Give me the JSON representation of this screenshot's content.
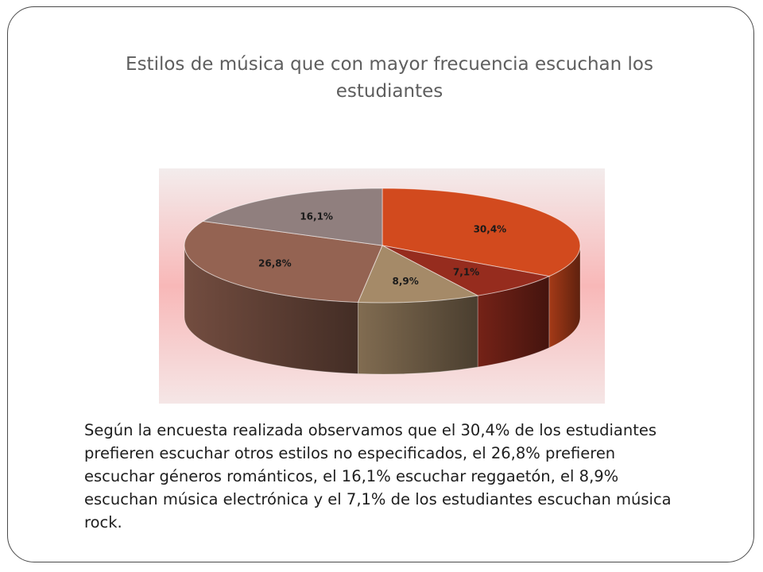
{
  "slide": {
    "title": "Estilos de música que con mayor frecuencia escuchan los estudiantes",
    "body": "Según la encuesta realizada observamos que el 30,4% de los estudiantes prefieren escuchar otros estilos no especificados, el 26,8% prefieren escuchar géneros románticos, el 16,1% escuchar reggaetón, el 8,9% escuchan música electrónica y el 7,1% de los estudiantes escuchan música rock."
  },
  "chart_data": {
    "type": "pie",
    "title": "Estilos de música que con mayor frecuencia escuchan los estudiantes",
    "values": [
      30.4,
      7.1,
      8.9,
      26.8,
      16.1
    ],
    "labels": [
      "30,4%",
      "7,1%",
      "8,9%",
      "26,8%",
      "16,1%"
    ],
    "colors": [
      "#d24a1e",
      "#962c1e",
      "#a58a68",
      "#946352",
      "#907f7e"
    ],
    "grid": false,
    "legend": "none",
    "style": "3d"
  }
}
